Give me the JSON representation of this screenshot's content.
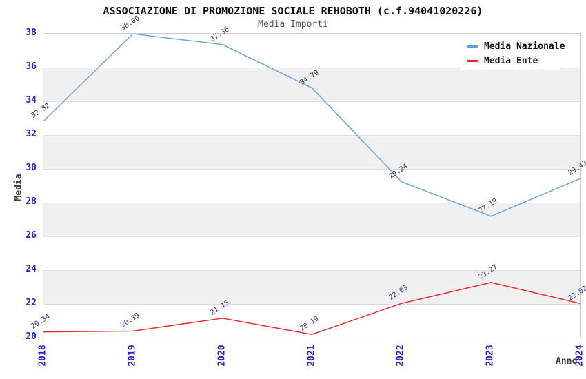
{
  "header": {
    "title": "ASSOCIAZIONE DI PROMOZIONE SOCIALE REHOBOTH (c.f.94041020226)",
    "subtitle": "Media Importi"
  },
  "chart_data": {
    "type": "line",
    "title": "ASSOCIAZIONE DI PROMOZIONE SOCIALE REHOBOTH (c.f.94041020226)",
    "subtitle": "Media Importi",
    "x": [
      2018,
      2019,
      2020,
      2021,
      2022,
      2023,
      2024
    ],
    "xlabel": "Anno",
    "ylabel": "Media",
    "ylim": [
      20,
      38
    ],
    "ytick_step": 2,
    "yticks": [
      20,
      22,
      24,
      26,
      28,
      30,
      32,
      34,
      36,
      38
    ],
    "grid": "alternating-horizontal-bands",
    "legend_position": "top-right",
    "series": [
      {
        "name": "Media Nazionale",
        "color": "#5ea2de",
        "label_color": "#333333",
        "values": [
          32.82,
          38.0,
          37.36,
          34.79,
          29.24,
          27.19,
          29.43
        ]
      },
      {
        "name": "Media Ente",
        "color": "#ee2222",
        "label_color": "#333399",
        "values": [
          20.34,
          20.39,
          21.15,
          20.19,
          22.03,
          23.27,
          22.02
        ]
      }
    ],
    "colors": {
      "tick_label": "#2222cc",
      "band_gray": "#f0f0f0",
      "gridline": "#dddddd",
      "plot_border": "#cccccc"
    }
  }
}
